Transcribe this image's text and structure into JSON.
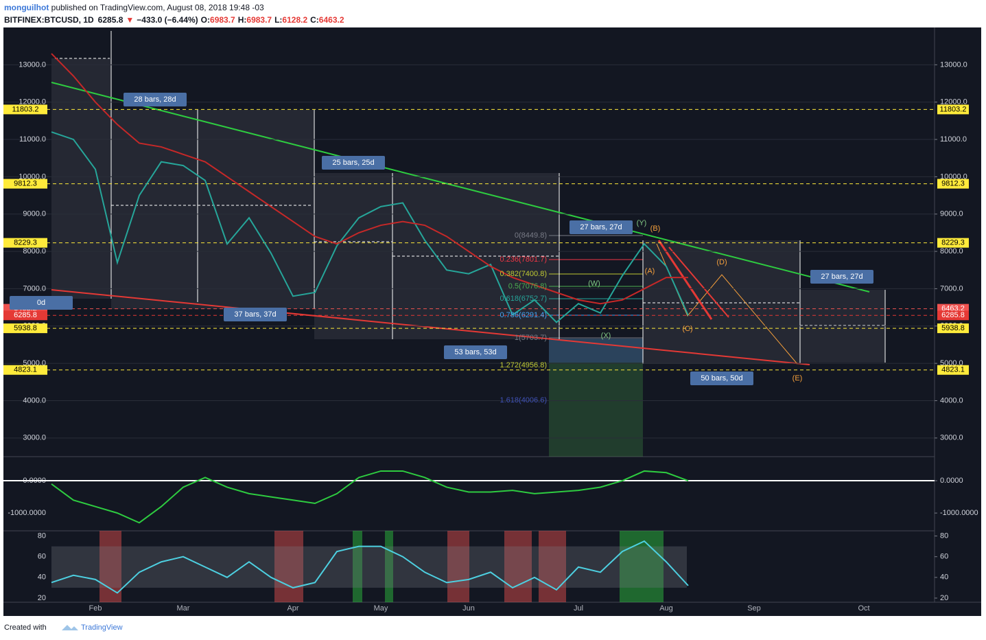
{
  "header": {
    "author": "monguilhot",
    "published": " published on TradingView.com, August 08, 2018 19:48 -03",
    "symbol": "BITFINEX:BTCUSD, 1D",
    "last": "6285.8",
    "arrow": "▼",
    "change": "−433.0 (−6.44%)",
    "ohlc": [
      {
        "label": "O:",
        "value": "6983.7"
      },
      {
        "label": "H:",
        "value": "6983.7"
      },
      {
        "label": "L:",
        "value": "6128.2"
      },
      {
        "label": "C:",
        "value": "6463.2"
      }
    ]
  },
  "footer": {
    "created": "Created with",
    "brand": "TradingView"
  },
  "chart_data": [
    {
      "type": "line",
      "categories": [
        null,
        null,
        "Feb",
        null,
        null,
        null,
        "Mar",
        null,
        null,
        null,
        null,
        "Apr",
        null,
        null,
        null,
        "May",
        null,
        null,
        null,
        "Jun",
        null,
        null,
        null,
        null,
        "Jul",
        null,
        null,
        null,
        "Aug",
        null,
        null,
        null,
        "Sep",
        null,
        null,
        null,
        null,
        "Oct",
        null,
        null,
        null
      ],
      "series": [
        {
          "color": "#26a69a",
          "values": [
            11200,
            11000,
            10200,
            7700,
            9500,
            10400,
            10300,
            9900,
            8200,
            8900,
            7950,
            6800,
            6900,
            8150,
            8900,
            9200,
            9300,
            8300,
            7500,
            7400,
            7650,
            6300,
            6700,
            6100,
            6600,
            6350,
            7350,
            8200,
            7600,
            6285.8,
            null,
            null,
            null,
            null,
            null,
            null,
            null,
            null,
            null,
            null,
            null
          ]
        },
        {
          "color": "#c62828",
          "values": [
            13300,
            12700,
            12000,
            11400,
            10900,
            10800,
            10600,
            10400,
            10000,
            9600,
            9200,
            8800,
            8400,
            8200,
            8500,
            8700,
            8800,
            8700,
            8400,
            8000,
            7600,
            7300,
            7100,
            6900,
            6700,
            6600,
            6700,
            7000,
            7300,
            7300,
            null,
            null,
            null,
            null,
            null,
            null,
            null,
            null,
            null,
            null,
            null
          ]
        }
      ],
      "ylim": [
        2500,
        14000
      ],
      "yticks": [
        {
          "value": 3000,
          "label": "3000.0"
        },
        {
          "value": 4000,
          "label": "4000.0"
        },
        {
          "value": 5000,
          "label": "5000.0"
        },
        {
          "value": 6000,
          "label": "6000.0"
        },
        {
          "value": 7000,
          "label": "7000.0"
        },
        {
          "value": 8000,
          "label": "8000.0"
        },
        {
          "value": 9000,
          "label": "9000.0"
        },
        {
          "value": 10000,
          "label": "10000.0"
        },
        {
          "value": 11000,
          "label": "11000.0"
        },
        {
          "value": 12000,
          "label": "12000.0"
        },
        {
          "value": 13000,
          "label": "13000.0"
        }
      ],
      "grid": true,
      "levels": [
        {
          "value": 11803.2,
          "color": "#ffeb3b"
        },
        {
          "value": 9812.3,
          "color": "#ffeb3b"
        },
        {
          "value": 8229.3,
          "color": "#ffeb3b"
        },
        {
          "value": 6463.2,
          "color": "#ef5350"
        },
        {
          "value": 6285.8,
          "color": "#e53935"
        },
        {
          "value": 5938.8,
          "color": "#ffeb3b"
        },
        {
          "value": 4823.1,
          "color": "#ffeb3b"
        }
      ],
      "bar_labels": [
        "28 bars, 28d",
        "25 bars, 25d",
        "37 bars, 37d",
        "53 bars, 53d",
        "27 bars, 27d",
        "50 bars, 50d",
        "27 bars, 27d",
        "0d"
      ],
      "wave_labels": [
        {
          "text": "(W)",
          "color": "#81c784"
        },
        {
          "text": "(X)",
          "color": "#81c784"
        },
        {
          "text": "(Y)",
          "color": "#81c784"
        },
        {
          "text": "(A)",
          "color": "#f6a03c"
        },
        {
          "text": "(B)",
          "color": "#f6a03c"
        },
        {
          "text": "(C)",
          "color": "#f6a03c"
        },
        {
          "text": "(D)",
          "color": "#f6a03c"
        },
        {
          "text": "(E)",
          "color": "#f6a03c"
        }
      ],
      "fib_labels": [
        {
          "text": "0(8449.8)",
          "color": "#787b86"
        },
        {
          "text": "0.236(7801.7)",
          "color": "#f23645"
        },
        {
          "text": "0.382(7400.8)",
          "color": "#c0ca33"
        },
        {
          "text": "0.5(7076.8)",
          "color": "#4caf50"
        },
        {
          "text": "0.618(6752.7)",
          "color": "#26a69a"
        },
        {
          "text": "0.786(6291.4)",
          "color": "#42a5f5"
        },
        {
          "text": "1(5703.7)",
          "color": "#787b86"
        },
        {
          "text": "1.272(4956.8)",
          "color": "#c0ca33"
        },
        {
          "text": "1.618(4006.6)",
          "color": "#3f51b5"
        }
      ]
    },
    {
      "type": "line",
      "series": [
        {
          "color": "#2ecc40",
          "values": [
            -100,
            -600,
            -800,
            -1000,
            -1300,
            -800,
            -200,
            100,
            -200,
            -400,
            -500,
            -600,
            -700,
            -400,
            100,
            300,
            300,
            100,
            -200,
            -350,
            -350,
            -300,
            -400,
            -350,
            -300,
            -200,
            0,
            300,
            250,
            0,
            null,
            null,
            null,
            null,
            null,
            null,
            null,
            null,
            null,
            null,
            null
          ]
        }
      ],
      "ylim": [
        -1550,
        745
      ],
      "yticks": [
        {
          "value": 0,
          "label": "0.0000"
        },
        {
          "value": -1000,
          "label": "-1000.0000"
        }
      ],
      "zero_line": "#ffffff"
    },
    {
      "type": "line",
      "series": [
        {
          "color": "#4dd0e1",
          "values": [
            35,
            42,
            38,
            25,
            45,
            55,
            60,
            50,
            40,
            55,
            40,
            30,
            35,
            65,
            70,
            70,
            60,
            45,
            35,
            38,
            45,
            30,
            40,
            28,
            50,
            45,
            65,
            75,
            55,
            32,
            null,
            null,
            null,
            null,
            null,
            null,
            null,
            null,
            null,
            null,
            null
          ]
        }
      ],
      "ylim": [
        16,
        85
      ],
      "yticks": [
        20,
        40,
        60,
        80
      ],
      "band": [
        30,
        70
      ]
    }
  ]
}
